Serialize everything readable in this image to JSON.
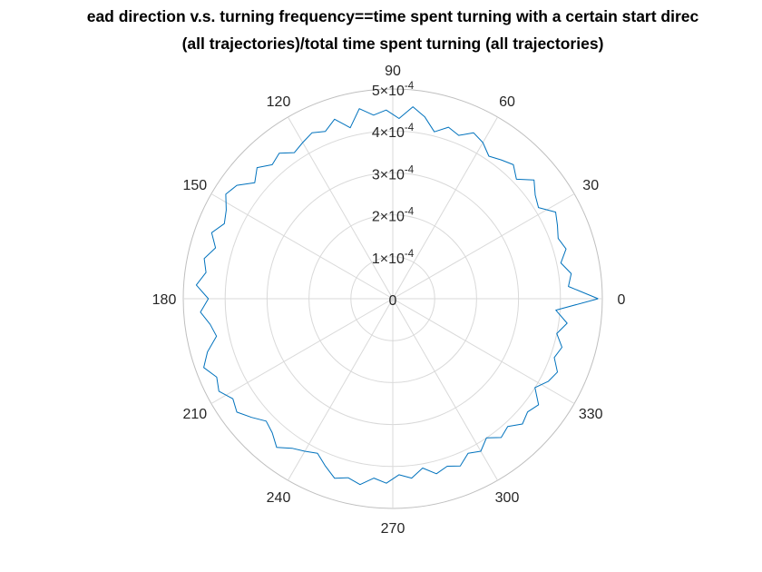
{
  "chart_data": {
    "type": "line",
    "projection": "polar",
    "title_line1": "ead direction v.s. turning frequency==time spent turning with a certain start direc",
    "title_line2": "(all trajectories)/total time spent turning (all trajectories)",
    "theta_unit": "degrees",
    "theta_tick_labels": [
      "0",
      "30",
      "60",
      "90",
      "120",
      "150",
      "180",
      "210",
      "240",
      "270",
      "300",
      "330"
    ],
    "r_tick_labels": [
      {
        "mantissa": "0",
        "exponent": ""
      },
      {
        "mantissa": "1×10",
        "exponent": "-4"
      },
      {
        "mantissa": "2×10",
        "exponent": "-4"
      },
      {
        "mantissa": "3×10",
        "exponent": "-4"
      },
      {
        "mantissa": "4×10",
        "exponent": "-4"
      },
      {
        "mantissa": "5×10",
        "exponent": "-4"
      }
    ],
    "rlim": [
      0,
      0.0005
    ],
    "grid": true,
    "line_color": "#0072BD",
    "grid_color": "#d9d9d9",
    "axis_color": "#bfbfbf",
    "r_values": [
      0.00049,
      0.00042,
      0.00043,
      0.00041,
      0.00043,
      0.00042,
      0.00043,
      0.00044,
      0.00041,
      0.00042,
      0.00044,
      0.00041,
      0.00043,
      0.00042,
      0.00041,
      0.00043,
      0.00044,
      0.00042,
      0.00043,
      0.00041,
      0.00044,
      0.00046,
      0.00043,
      0.00045,
      0.00044,
      0.00046,
      0.00042,
      0.00045,
      0.00043,
      0.00044,
      0.00043,
      0.00042,
      0.00044,
      0.00043,
      0.00045,
      0.00043,
      0.00046,
      0.00047,
      0.00045,
      0.00044,
      0.00046,
      0.00044,
      0.00046,
      0.00045,
      0.00047,
      0.00044,
      0.00046,
      0.00044,
      0.00043,
      0.00046,
      0.00048,
      0.00046,
      0.00047,
      0.00045,
      0.00046,
      0.00044,
      0.00042,
      0.00043,
      0.00045,
      0.00043,
      0.00042,
      0.00041,
      0.00043,
      0.00045,
      0.00044,
      0.00045,
      0.00043,
      0.00044,
      0.00042,
      0.00043,
      0.00041,
      0.00043,
      0.00042,
      0.00043,
      0.00041,
      0.00042,
      0.0004,
      0.00042,
      0.00041,
      0.00043,
      0.00042,
      0.00043,
      0.0004,
      0.00042,
      0.00043,
      0.00041,
      0.00042,
      0.0004,
      0.00042,
      0.00039
    ]
  }
}
